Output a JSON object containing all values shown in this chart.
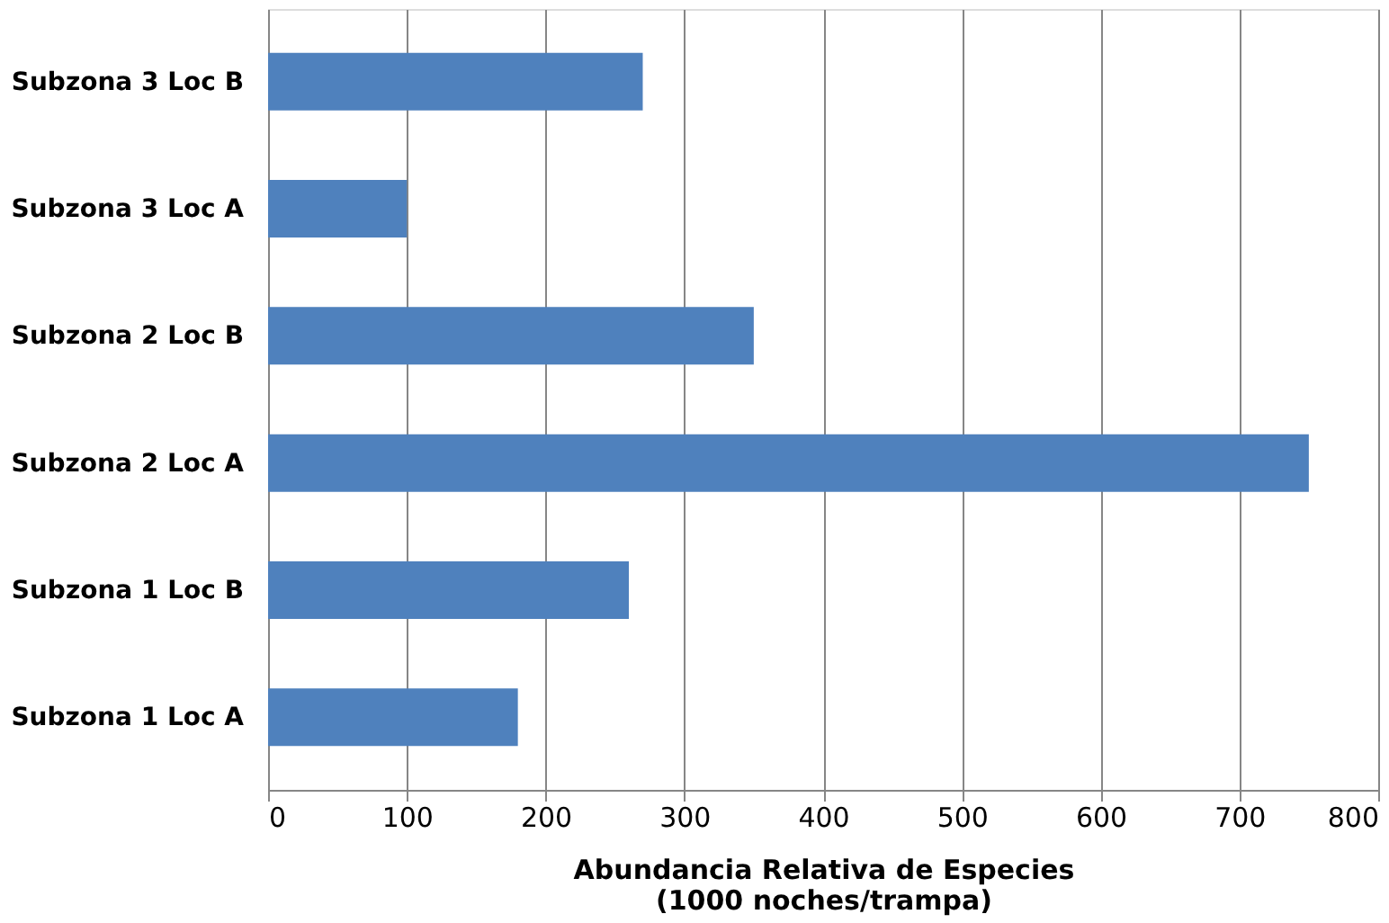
{
  "chart_data": {
    "type": "bar",
    "orientation": "horizontal",
    "categories": [
      "Subzona 3 Loc B",
      "Subzona 3 Loc A",
      "Subzona 2 Loc B",
      "Subzona 2 Loc A",
      "Subzona 1 Loc B",
      "Subzona 1 Loc A"
    ],
    "values": [
      270,
      100,
      350,
      750,
      260,
      180
    ],
    "color": "#4f81bd",
    "xlabel": "Abundancia Relativa de Especies\n(1000 noches/trampa)",
    "xlim": [
      0,
      800
    ],
    "xticks": [
      0,
      100,
      200,
      300,
      400,
      500,
      600,
      700,
      800
    ],
    "grid": "x"
  }
}
